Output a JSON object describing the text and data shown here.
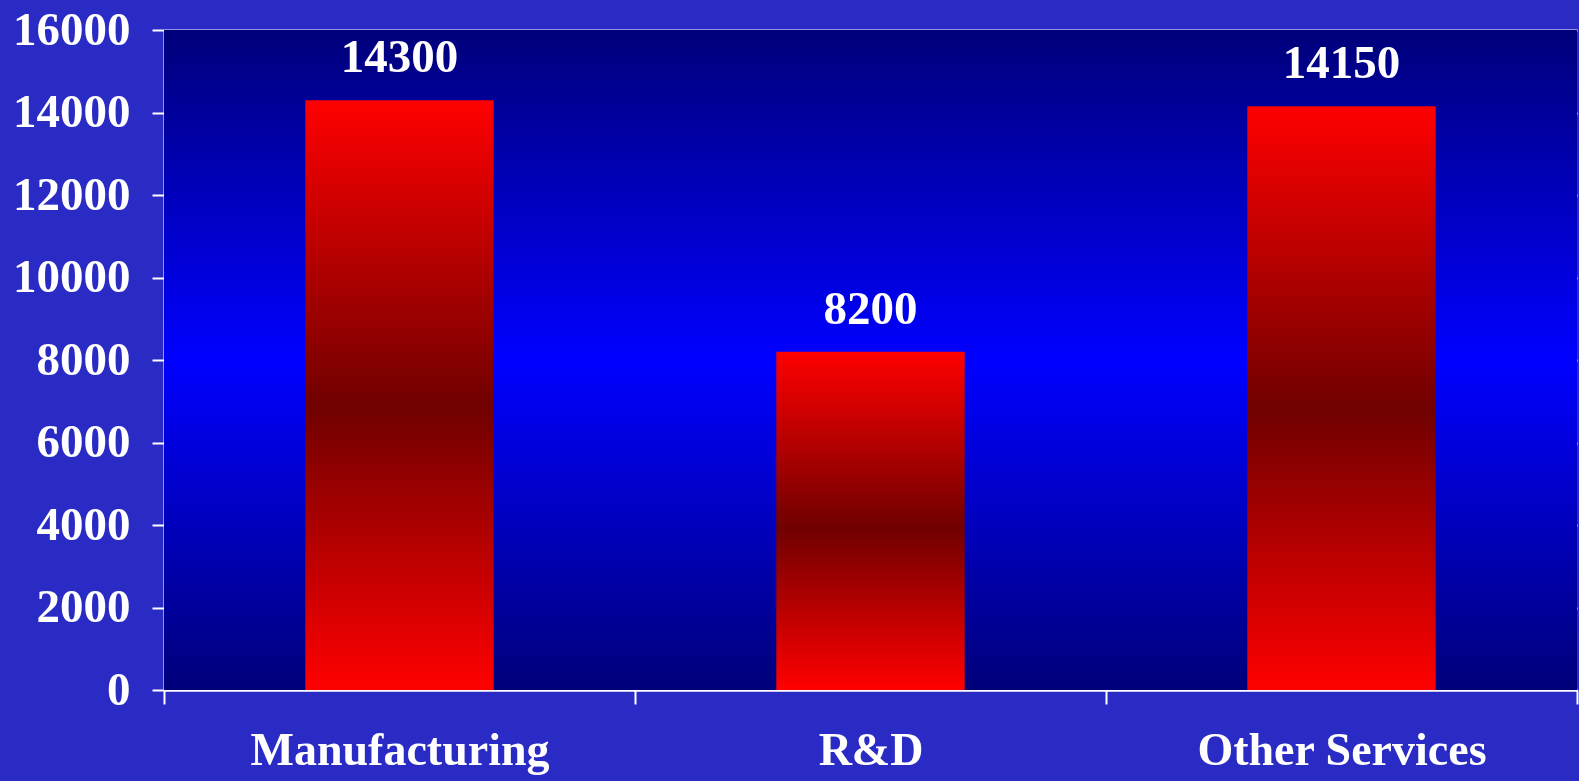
{
  "chart_data": {
    "type": "bar",
    "categories": [
      "Manufacturing",
      "R&D",
      "Other Services"
    ],
    "values": [
      14300,
      8200,
      14150
    ],
    "color": "#ff0000",
    "ylim": [
      0,
      16000
    ],
    "yticks": [
      0,
      2000,
      4000,
      6000,
      8000,
      10000,
      12000,
      14000,
      16000
    ],
    "grid": "y",
    "data_labels": true
  }
}
